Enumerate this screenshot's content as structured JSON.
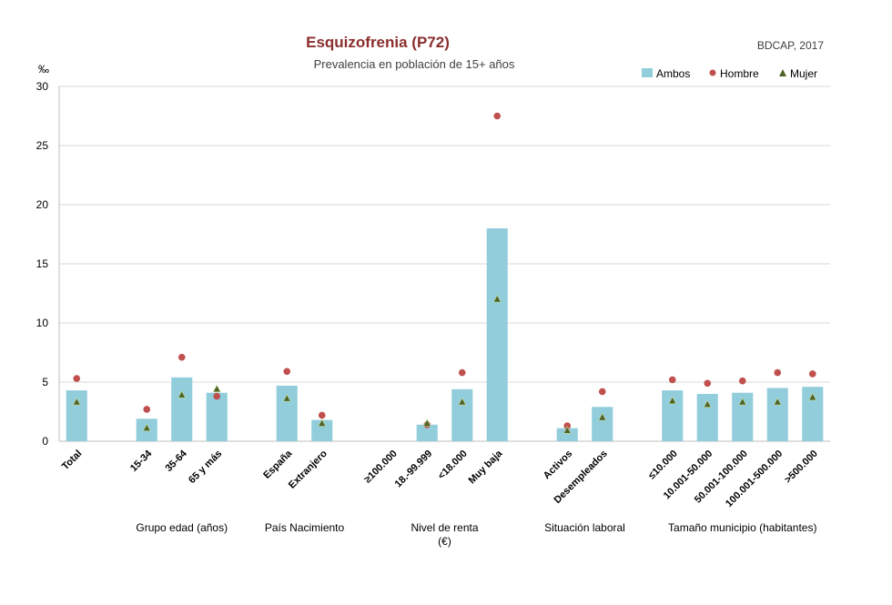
{
  "chart_data": {
    "type": "bar",
    "title": "Esquizofrenia (P72)",
    "subtitle": "Prevalencia en población de 15+ años",
    "source": "BDCAP, 2017",
    "ylabel": "‰",
    "ylim": [
      0,
      30
    ],
    "yticks": [
      0,
      5,
      10,
      15,
      20,
      25,
      30
    ],
    "colors": {
      "ambos": "#92cddc",
      "hombre": "#c0504d",
      "mujer": "#4f6228",
      "grid": "#d9d9d9"
    },
    "legend": [
      "Ambos",
      "Hombre",
      "Mujer"
    ],
    "groups": [
      {
        "label": "",
        "categories": [
          {
            "name": "Total",
            "ambos": 4.3,
            "hombre": 5.3,
            "mujer": 3.3
          }
        ]
      },
      {
        "label": "Grupo edad (años)",
        "categories": [
          {
            "name": "15-34",
            "ambos": 1.9,
            "hombre": 2.7,
            "mujer": 1.1
          },
          {
            "name": "35-64",
            "ambos": 5.4,
            "hombre": 7.1,
            "mujer": 3.9
          },
          {
            "name": "65 y más",
            "ambos": 4.1,
            "hombre": 3.8,
            "mujer": 4.4
          }
        ]
      },
      {
        "label": "País Nacimiento",
        "categories": [
          {
            "name": "España",
            "ambos": 4.7,
            "hombre": 5.9,
            "mujer": 3.6
          },
          {
            "name": "Extranjero",
            "ambos": 1.8,
            "hombre": 2.2,
            "mujer": 1.5
          }
        ]
      },
      {
        "label": "Nivel de renta (€)",
        "label_lines": [
          "Nivel de renta",
          "(€)"
        ],
        "categories": [
          {
            "name": "≥100.000",
            "ambos": null,
            "hombre": null,
            "mujer": null
          },
          {
            "name": "18.-99.999",
            "ambos": 1.4,
            "hombre": 1.4,
            "mujer": 1.5
          },
          {
            "name": "<18.000",
            "ambos": 4.4,
            "hombre": 5.8,
            "mujer": 3.3
          },
          {
            "name": "Muy baja",
            "ambos": 18.0,
            "hombre": 27.5,
            "mujer": 12.0
          }
        ]
      },
      {
        "label": "Situación laboral",
        "categories": [
          {
            "name": "Activos",
            "ambos": 1.1,
            "hombre": 1.3,
            "mujer": 0.9
          },
          {
            "name": "Desempleados",
            "ambos": 2.9,
            "hombre": 4.2,
            "mujer": 2.0
          }
        ]
      },
      {
        "label": "Tamaño municipio (habitantes)",
        "categories": [
          {
            "name": "≤10.000",
            "ambos": 4.3,
            "hombre": 5.2,
            "mujer": 3.4
          },
          {
            "name": "10.001-50.000",
            "ambos": 4.0,
            "hombre": 4.9,
            "mujer": 3.1
          },
          {
            "name": "50.001-100.000",
            "ambos": 4.1,
            "hombre": 5.1,
            "mujer": 3.3
          },
          {
            "name": "100.001-500.000",
            "ambos": 4.5,
            "hombre": 5.8,
            "mujer": 3.3
          },
          {
            "name": ">500.000",
            "ambos": 4.6,
            "hombre": 5.7,
            "mujer": 3.7
          }
        ]
      }
    ]
  }
}
